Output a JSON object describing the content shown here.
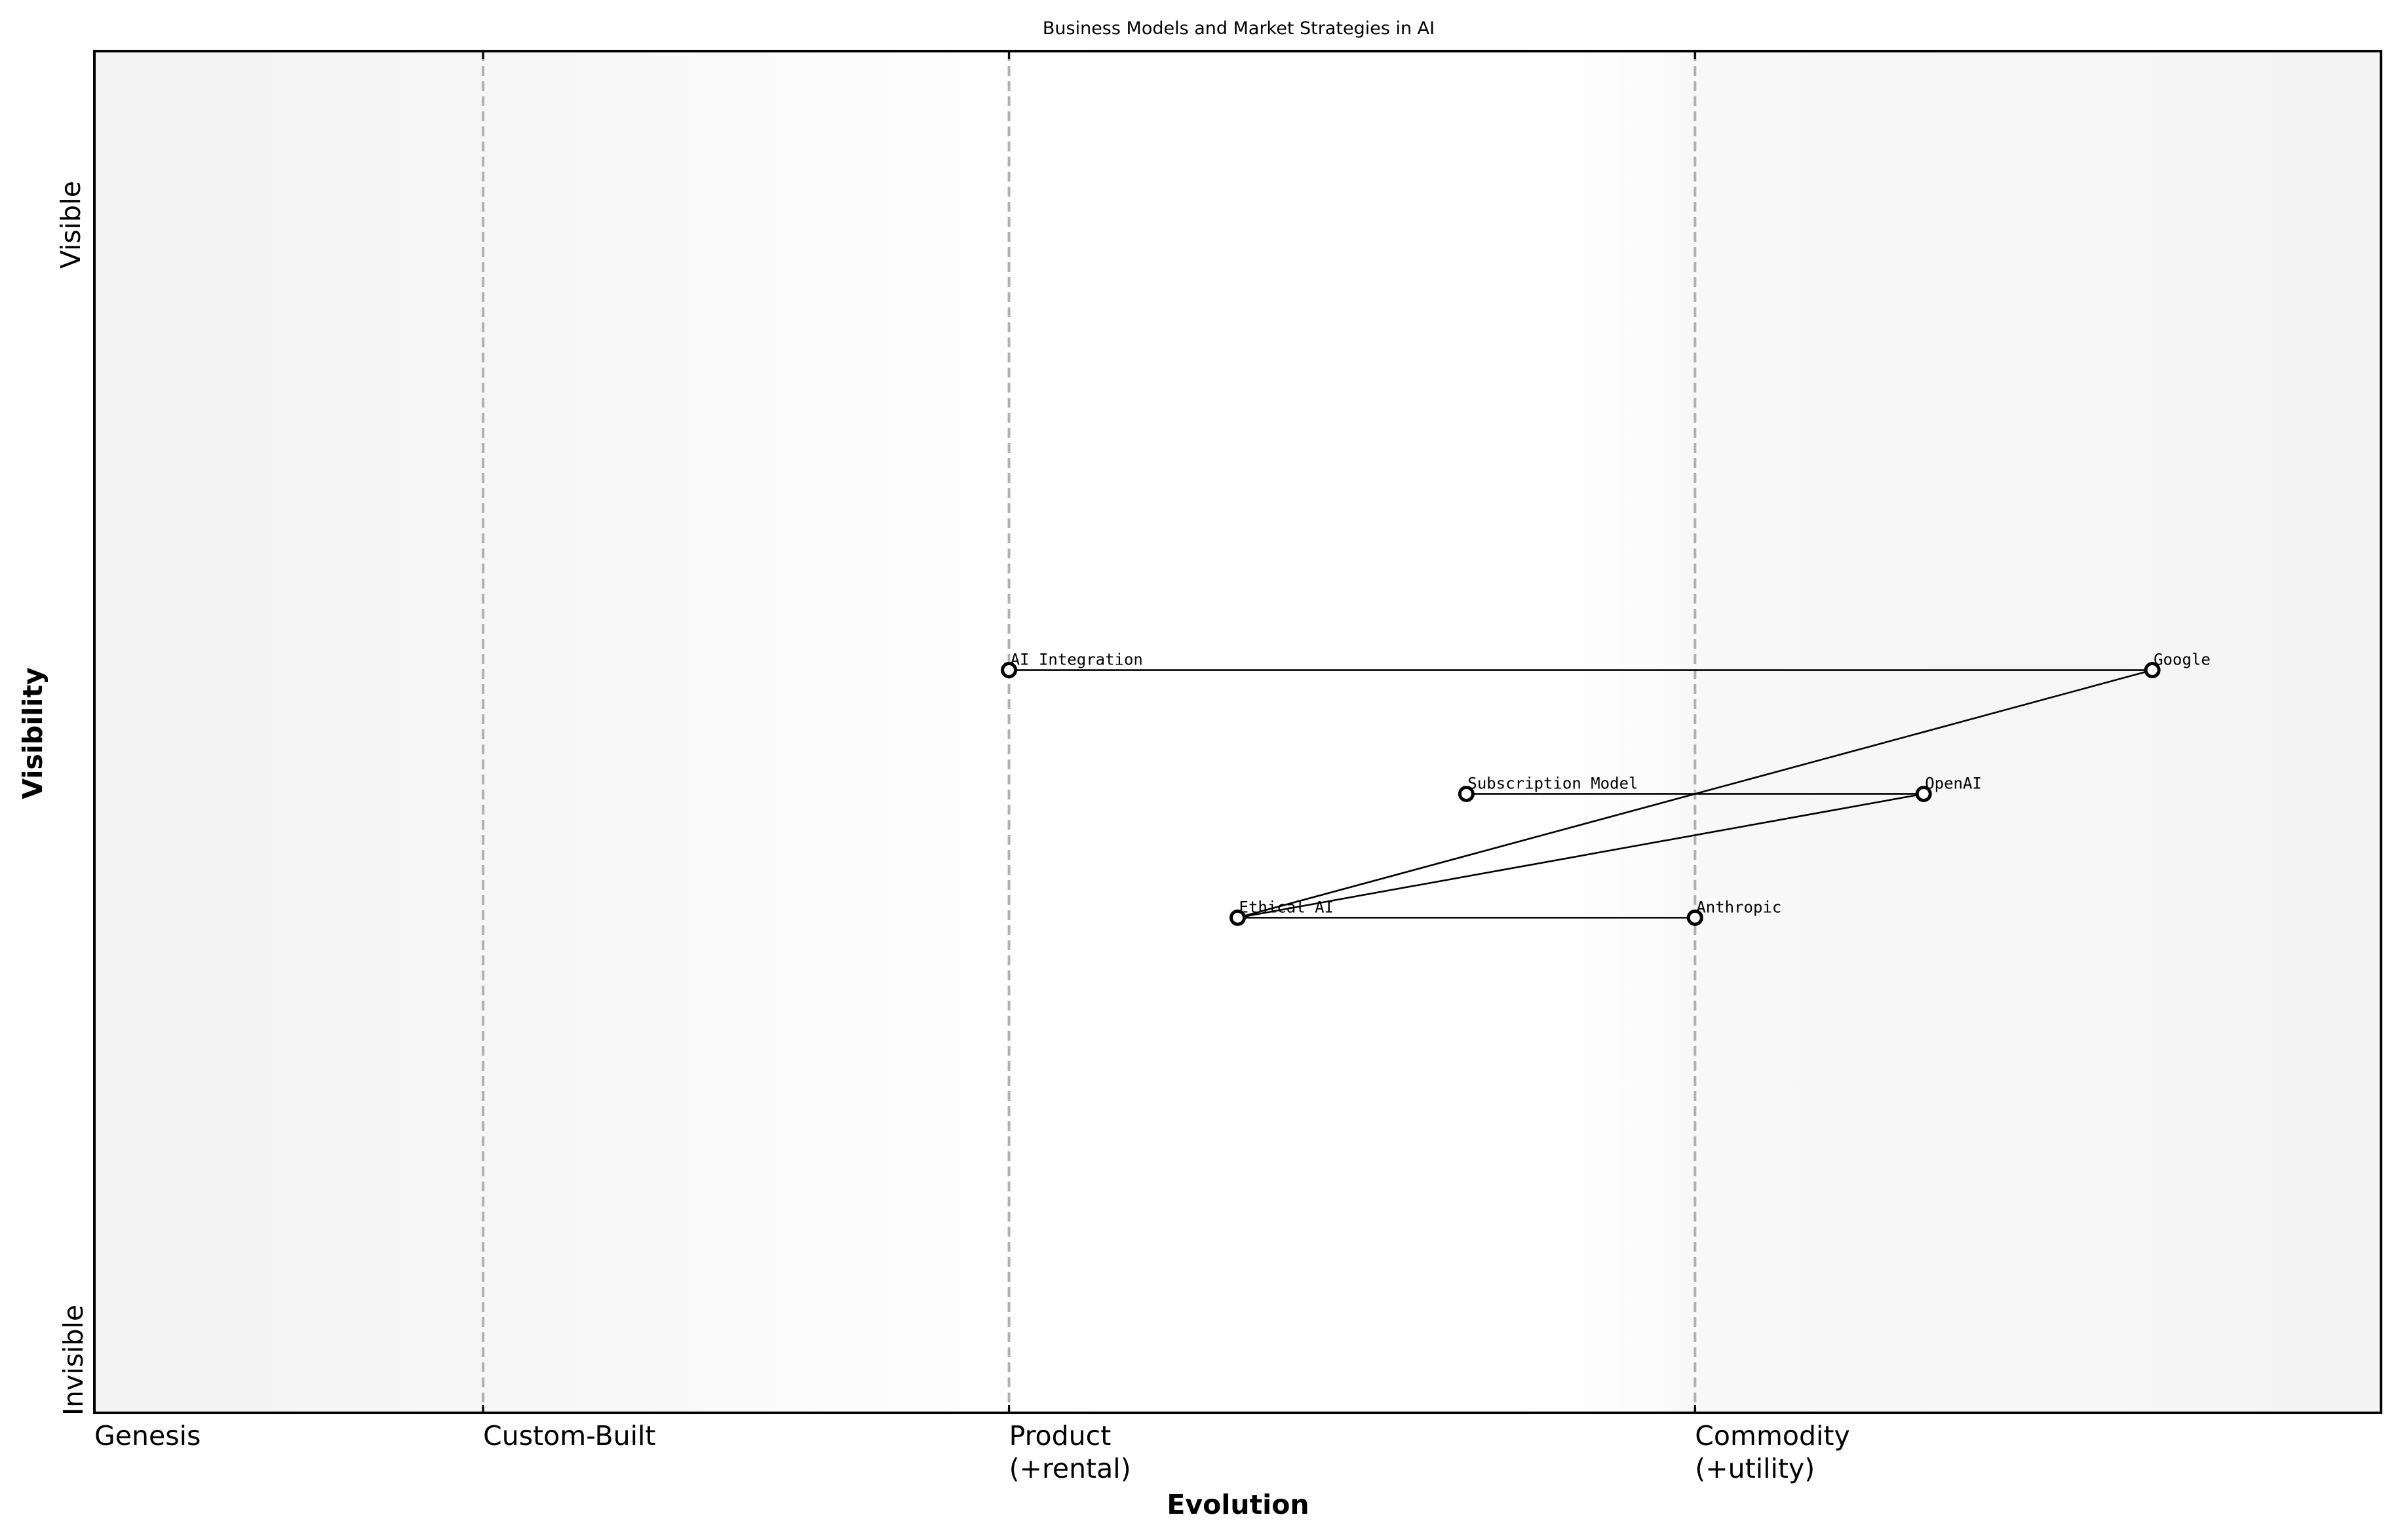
{
  "chart_data": {
    "type": "scatter",
    "subtype": "wardley-map",
    "title": "Business Models and Market Strategies in AI",
    "xlabel": "Evolution",
    "ylabel": "Visibility",
    "xlim": [
      0,
      1
    ],
    "ylim": [
      0,
      1.1
    ],
    "grid": false,
    "y_end_labels": {
      "top": "Visible",
      "bottom": "Invisible"
    },
    "stages": [
      {
        "label": "Genesis",
        "x": 0.0,
        "line": false
      },
      {
        "label": "Custom-Built",
        "x": 0.17,
        "line": true
      },
      {
        "label": "Product\n(+rental)",
        "x": 0.4,
        "line": true
      },
      {
        "label": "Commodity\n(+utility)",
        "x": 0.7,
        "line": true
      }
    ],
    "nodes": [
      {
        "id": "ai-integration",
        "label": "AI Integration",
        "x": 0.4,
        "y": 0.6
      },
      {
        "id": "google",
        "label": "Google",
        "x": 0.9,
        "y": 0.6
      },
      {
        "id": "subscription-model",
        "label": "Subscription Model",
        "x": 0.6,
        "y": 0.5
      },
      {
        "id": "openai",
        "label": "OpenAI",
        "x": 0.8,
        "y": 0.5
      },
      {
        "id": "ethical-ai",
        "label": "Ethical AI",
        "x": 0.5,
        "y": 0.4
      },
      {
        "id": "anthropic",
        "label": "Anthropic",
        "x": 0.7,
        "y": 0.4
      }
    ],
    "links": [
      [
        "ai-integration",
        "google"
      ],
      [
        "subscription-model",
        "openai"
      ],
      [
        "ethical-ai",
        "anthropic"
      ],
      [
        "google",
        "ethical-ai"
      ],
      [
        "openai",
        "ethical-ai"
      ]
    ]
  },
  "colors": {
    "stage_line": "#b0b0b0",
    "background_edge": "#f4f4f4",
    "background_center": "#ffffff",
    "node_fill": "#ffffff",
    "node_stroke": "#000000",
    "link": "#000000"
  },
  "header": {
    "title": "Business Models and Market Strategies in AI"
  },
  "axes": {
    "x_label": "Evolution",
    "y_label": "Visibility",
    "y_top": "Visible",
    "y_bottom": "Invisible"
  }
}
